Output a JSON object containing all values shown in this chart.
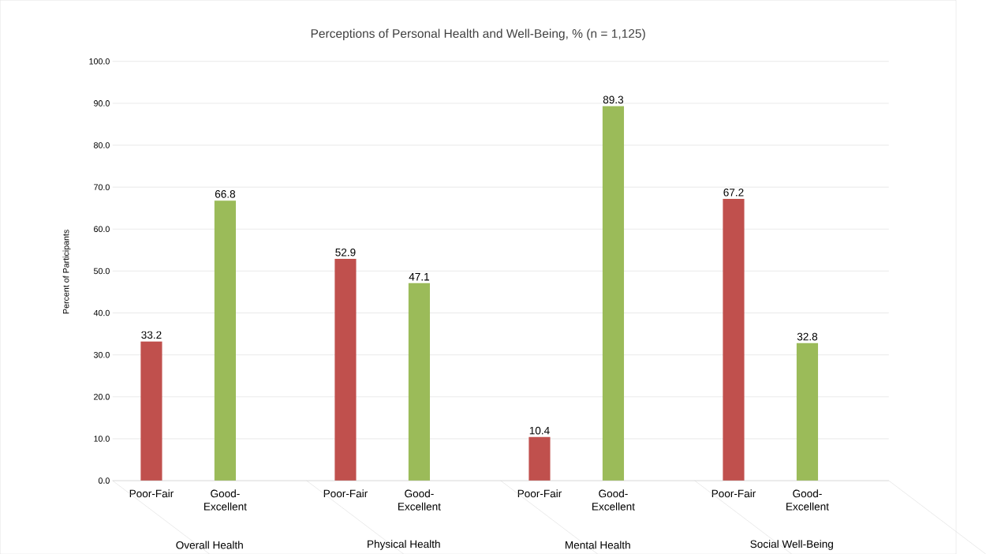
{
  "chart_data": {
    "type": "bar",
    "title": "Perceptions of Personal Health and Well-Being, % (n = 1,125)",
    "ylabel": "Percent of Participants",
    "categories": [
      "Overall Health",
      "Physical Health",
      "Mental Health",
      "Social Well-Being"
    ],
    "series": [
      {
        "name": "Poor-Fair",
        "color": "#c0504d",
        "values": [
          33.2,
          52.9,
          10.4,
          67.2
        ]
      },
      {
        "name": "Good-Excellent",
        "color": "#9bbb59",
        "values": [
          66.8,
          47.1,
          89.3,
          32.8
        ]
      }
    ],
    "ylim": [
      0,
      100
    ],
    "yticks": [
      {
        "value": 0,
        "label": "0.0"
      },
      {
        "value": 10,
        "label": "10.0"
      },
      {
        "value": 20,
        "label": "20.0"
      },
      {
        "value": 30,
        "label": "30.0"
      },
      {
        "value": 40,
        "label": "40.0"
      },
      {
        "value": 50,
        "label": "50.0"
      },
      {
        "value": 60,
        "label": "60.0"
      },
      {
        "value": 70,
        "label": "70.0"
      },
      {
        "value": 80,
        "label": "80.0"
      },
      {
        "value": 90,
        "label": "90.0"
      },
      {
        "value": 100,
        "label": "100.0"
      }
    ],
    "grid": "y",
    "data_labels": true
  }
}
